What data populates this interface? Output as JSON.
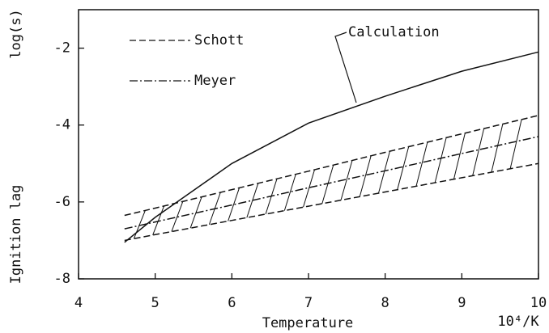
{
  "chart_data": {
    "type": "line",
    "x_label": "Temperature",
    "x_unit": "10⁴/K",
    "y_label": "Ignition lag",
    "y_unit": "log(s)",
    "xlim": [
      4,
      10
    ],
    "xticks": [
      4,
      5,
      6,
      7,
      8,
      9,
      10
    ],
    "ylim": [
      -8,
      -1
    ],
    "yticks": [
      -8,
      -6,
      -4,
      -2
    ],
    "x": [
      4.6,
      5,
      6,
      7,
      8,
      9,
      10
    ],
    "series": [
      {
        "name": "Calculation",
        "color": "#111111",
        "dash": "solid",
        "values": [
          -7.05,
          -6.4,
          -5.0,
          -3.95,
          -3.25,
          -2.6,
          -2.1
        ]
      },
      {
        "name": "Meyer",
        "color": "#111111",
        "dash": "dashdot",
        "values": [
          -6.7,
          -6.52,
          -6.08,
          -5.63,
          -5.19,
          -4.74,
          -4.3
        ]
      }
    ],
    "band": {
      "name": "Schott",
      "color": "#111111",
      "dash": "dashed",
      "hatch": true,
      "upper": [
        -6.35,
        -6.16,
        -5.68,
        -5.2,
        -4.71,
        -4.23,
        -3.75
      ],
      "lower": [
        -7.0,
        -6.85,
        -6.48,
        -6.11,
        -5.74,
        -5.37,
        -5.0
      ]
    }
  }
}
